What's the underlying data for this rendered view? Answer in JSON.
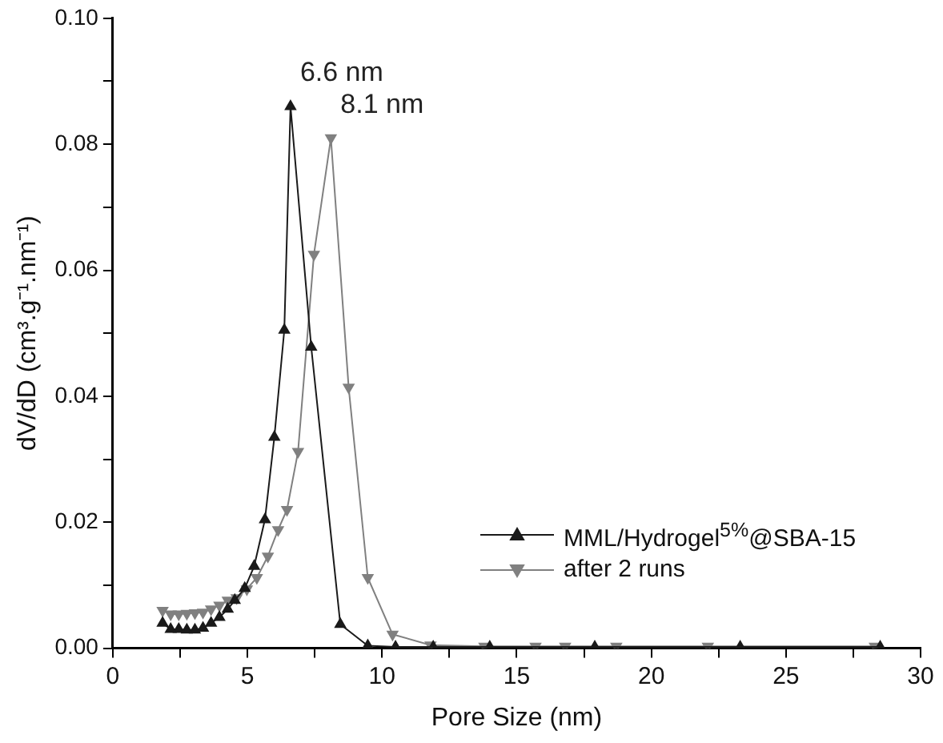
{
  "chart_data": {
    "type": "line",
    "xlabel": "Pore Size (nm)",
    "ylabel": "dV/dD (cm³.g⁻¹.nm⁻¹)",
    "xlim": [
      0,
      30
    ],
    "xticks": [
      0,
      {
        "value": 2.5,
        "label": null
      },
      5,
      {
        "value": 7.5,
        "label": null
      },
      10,
      {
        "value": 12.5,
        "label": null
      },
      15,
      {
        "value": 17.5,
        "label": null
      },
      20,
      {
        "value": 22.5,
        "label": null
      },
      25,
      {
        "value": 27.5,
        "label": null
      },
      30
    ],
    "ylim": [
      0,
      0.1
    ],
    "yticks": [
      {
        "value": 0,
        "label": "0.00"
      },
      {
        "value": 0.01,
        "label": null
      },
      {
        "value": 0.02,
        "label": "0.02"
      },
      {
        "value": 0.03,
        "label": null
      },
      {
        "value": 0.04,
        "label": "0.04"
      },
      {
        "value": 0.05,
        "label": null
      },
      {
        "value": 0.06,
        "label": "0.06"
      },
      {
        "value": 0.07,
        "label": null
      },
      {
        "value": 0.08,
        "label": "0.08"
      },
      {
        "value": 0.09,
        "label": null
      },
      {
        "value": 0.1,
        "label": "0.10"
      }
    ],
    "grid": false,
    "legend": "bottom right",
    "marker": "triangle",
    "line_style": "solid",
    "annotations": [
      {
        "text": "6.6 nm",
        "x": 6.6,
        "y": 0.086
      },
      {
        "text": "8.1 nm",
        "x": 8.1,
        "y": 0.081
      }
    ],
    "series": [
      {
        "name": "MML/Hydrogel$^{5%}$@SBA-15",
        "color": "#1a1a1a",
        "x": [
          1.85,
          2.15,
          2.45,
          2.75,
          3.05,
          3.35,
          3.65,
          3.96,
          4.27,
          4.53,
          4.9,
          5.25,
          5.65,
          6.0,
          6.37,
          6.6,
          7.37,
          8.45,
          9.47,
          10.5,
          11.9,
          14.0,
          17.9,
          23.3,
          28.5
        ],
        "values": [
          0.004,
          0.003,
          0.003,
          0.0029,
          0.0029,
          0.0032,
          0.004,
          0.0049,
          0.0062,
          0.0076,
          0.0095,
          0.013,
          0.0204,
          0.0335,
          0.0505,
          0.086,
          0.0478,
          0.0038,
          0.0004,
          0.0002,
          0.0002,
          0.0002,
          0.0002,
          0.0002,
          0.0002
        ]
      },
      {
        "name": "after 2 runs",
        "color": "#808080",
        "x": [
          1.85,
          2.15,
          2.45,
          2.75,
          3.05,
          3.35,
          3.65,
          3.96,
          4.27,
          4.6,
          4.98,
          5.35,
          5.76,
          6.14,
          6.47,
          6.88,
          7.47,
          8.1,
          8.76,
          9.47,
          10.39,
          11.8,
          13.8,
          15.7,
          16.8,
          18.7,
          22.1,
          28.3
        ],
        "values": [
          0.006,
          0.0054,
          0.0054,
          0.0055,
          0.0056,
          0.0057,
          0.0062,
          0.0068,
          0.0076,
          0.008,
          0.0094,
          0.0112,
          0.0146,
          0.0188,
          0.022,
          0.0312,
          0.0625,
          0.081,
          0.0414,
          0.0112,
          0.0022,
          0.0005,
          0.0003,
          0.0003,
          0.0003,
          0.0003,
          0.0003,
          0.0003
        ]
      }
    ]
  }
}
